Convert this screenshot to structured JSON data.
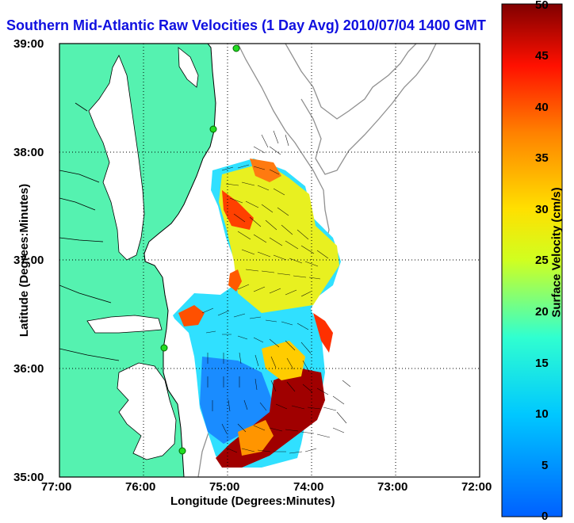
{
  "title": "Southern Mid-Atlantic Raw Velocities (1 Day Avg) 2010/07/04 1400 GMT",
  "map": {
    "xlabel": "Longitude (Degrees:Minutes)",
    "ylabel": "Latitude (Degrees:Minutes)",
    "x_ticks": [
      "77:00",
      "76:00",
      "75:00",
      "74:00",
      "73:00",
      "72:00"
    ],
    "y_ticks": [
      "39:00",
      "38:00",
      "37:00",
      "36:00",
      "35:00"
    ],
    "land_color": "#55f2b0",
    "coastline_color": "#000000",
    "bathymetry_color": "#909090",
    "station_marker_color": "#22dd22",
    "grid": "dotted"
  },
  "colorbar": {
    "label": "Surface Velocity (cm/s)",
    "min": 0,
    "max": 50,
    "ticks": [
      "0",
      "5",
      "10",
      "15",
      "20",
      "25",
      "30",
      "35",
      "40",
      "45",
      "50"
    ]
  }
}
